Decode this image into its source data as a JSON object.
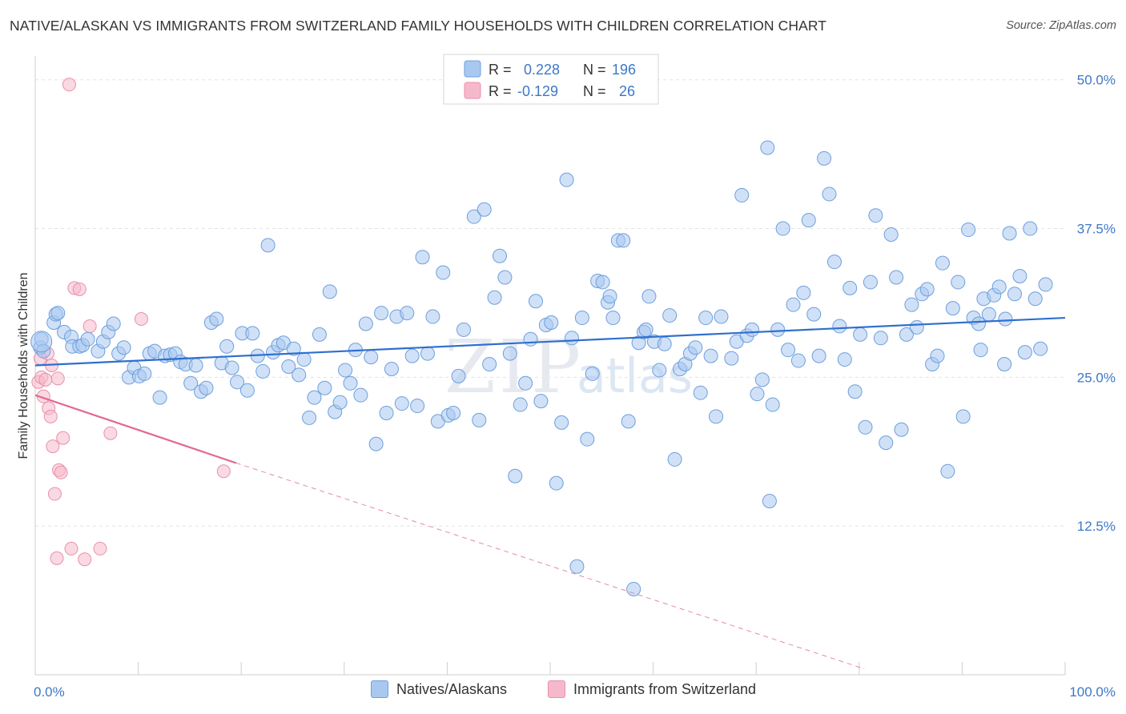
{
  "title": "NATIVE/ALASKAN VS IMMIGRANTS FROM SWITZERLAND FAMILY HOUSEHOLDS WITH CHILDREN CORRELATION CHART",
  "source": "Source: ZipAtlas.com",
  "watermark": {
    "zip": "ZIP",
    "atlas": "atlas"
  },
  "legend": {
    "r_label": "R =",
    "n_label": "N =",
    "rows": [
      {
        "r": "0.228",
        "n": "196"
      },
      {
        "r": "-0.129",
        "n": "26"
      }
    ]
  },
  "chart_data": {
    "type": "scatter",
    "xlabel": "",
    "ylabel": "Family Households with Children",
    "xlim": [
      0,
      100
    ],
    "ylim": [
      0,
      52
    ],
    "x_tick_labels": [
      "0.0%",
      "100.0%"
    ],
    "y_ticks": [
      12.5,
      25.0,
      37.5,
      50.0
    ],
    "y_tick_labels": [
      "12.5%",
      "25.0%",
      "37.5%",
      "50.0%"
    ],
    "grid": "horizontal-dashed",
    "legend_position": "top-center",
    "colors": {
      "series1_fill": "#a9c8f0",
      "series1_stroke": "#6d9fdc",
      "series1_line": "#2f6fce",
      "series2_fill": "#f6b9cb",
      "series2_stroke": "#e890ab",
      "series2_line": "#e06a93",
      "tick_label": "#3d78c8"
    },
    "series": [
      {
        "name": "Natives/Alaskans",
        "trend": {
          "x0": 0,
          "y0": 26.0,
          "x1": 100,
          "y1": 30.0
        },
        "points": [
          [
            0.5,
            27.5
          ],
          [
            0.6,
            28.2
          ],
          [
            0.8,
            27.2
          ],
          [
            1.8,
            29.6
          ],
          [
            2.0,
            30.3
          ],
          [
            2.2,
            30.4
          ],
          [
            2.8,
            28.8
          ],
          [
            3.5,
            28.4
          ],
          [
            3.6,
            27.6
          ],
          [
            4.3,
            27.6
          ],
          [
            4.6,
            27.7
          ],
          [
            5.1,
            28.2
          ],
          [
            6.1,
            27.2
          ],
          [
            6.6,
            28.0
          ],
          [
            7.1,
            28.8
          ],
          [
            7.6,
            29.5
          ],
          [
            8.1,
            27.0
          ],
          [
            8.6,
            27.5
          ],
          [
            9.1,
            25.0
          ],
          [
            9.6,
            25.8
          ],
          [
            10.1,
            25.1
          ],
          [
            10.6,
            25.3
          ],
          [
            11.1,
            27.0
          ],
          [
            11.6,
            27.2
          ],
          [
            12.1,
            23.3
          ],
          [
            12.6,
            26.8
          ],
          [
            13.1,
            26.9
          ],
          [
            13.6,
            27.0
          ],
          [
            14.1,
            26.3
          ],
          [
            14.6,
            26.1
          ],
          [
            15.1,
            24.5
          ],
          [
            15.6,
            26.0
          ],
          [
            16.1,
            23.8
          ],
          [
            16.6,
            24.1
          ],
          [
            17.1,
            29.6
          ],
          [
            17.6,
            29.9
          ],
          [
            18.1,
            26.2
          ],
          [
            18.6,
            27.6
          ],
          [
            19.1,
            25.8
          ],
          [
            19.6,
            24.6
          ],
          [
            20.1,
            28.7
          ],
          [
            20.6,
            23.9
          ],
          [
            21.1,
            28.7
          ],
          [
            21.6,
            26.8
          ],
          [
            22.1,
            25.5
          ],
          [
            22.6,
            36.1
          ],
          [
            23.1,
            27.1
          ],
          [
            23.6,
            27.7
          ],
          [
            24.1,
            27.9
          ],
          [
            24.6,
            25.9
          ],
          [
            25.1,
            27.4
          ],
          [
            25.6,
            25.2
          ],
          [
            26.1,
            26.5
          ],
          [
            26.6,
            21.6
          ],
          [
            27.1,
            23.3
          ],
          [
            27.6,
            28.6
          ],
          [
            28.1,
            24.1
          ],
          [
            28.6,
            32.2
          ],
          [
            29.1,
            22.1
          ],
          [
            29.6,
            22.9
          ],
          [
            30.1,
            25.6
          ],
          [
            30.6,
            24.5
          ],
          [
            31.1,
            27.3
          ],
          [
            31.6,
            23.5
          ],
          [
            32.1,
            29.5
          ],
          [
            32.6,
            26.7
          ],
          [
            33.1,
            19.4
          ],
          [
            33.6,
            30.4
          ],
          [
            34.1,
            22.0
          ],
          [
            34.6,
            25.7
          ],
          [
            35.1,
            30.1
          ],
          [
            35.6,
            22.8
          ],
          [
            36.1,
            30.4
          ],
          [
            36.6,
            26.8
          ],
          [
            37.1,
            22.6
          ],
          [
            37.6,
            35.1
          ],
          [
            38.1,
            27.0
          ],
          [
            38.6,
            30.1
          ],
          [
            39.1,
            21.3
          ],
          [
            39.6,
            33.8
          ],
          [
            40.1,
            21.8
          ],
          [
            40.6,
            22.0
          ],
          [
            41.1,
            25.1
          ],
          [
            41.6,
            29.0
          ],
          [
            42.6,
            38.5
          ],
          [
            43.1,
            21.4
          ],
          [
            43.6,
            39.1
          ],
          [
            44.1,
            26.1
          ],
          [
            44.6,
            31.7
          ],
          [
            45.1,
            35.2
          ],
          [
            45.6,
            33.4
          ],
          [
            46.1,
            27.0
          ],
          [
            46.6,
            16.7
          ],
          [
            47.1,
            22.7
          ],
          [
            47.6,
            24.5
          ],
          [
            48.1,
            28.2
          ],
          [
            48.6,
            31.4
          ],
          [
            49.1,
            23.0
          ],
          [
            49.6,
            29.4
          ],
          [
            50.1,
            29.6
          ],
          [
            50.6,
            16.1
          ],
          [
            51.1,
            21.2
          ],
          [
            51.6,
            41.6
          ],
          [
            52.1,
            28.3
          ],
          [
            52.6,
            9.1
          ],
          [
            53.1,
            30.0
          ],
          [
            53.6,
            19.8
          ],
          [
            54.1,
            25.3
          ],
          [
            54.6,
            33.1
          ],
          [
            55.1,
            33.0
          ],
          [
            55.6,
            31.3
          ],
          [
            55.8,
            31.8
          ],
          [
            56.1,
            30.0
          ],
          [
            56.6,
            36.5
          ],
          [
            57.1,
            36.5
          ],
          [
            57.6,
            21.3
          ],
          [
            58.1,
            7.2
          ],
          [
            58.6,
            27.9
          ],
          [
            59.1,
            28.8
          ],
          [
            59.6,
            31.8
          ],
          [
            60.1,
            28.0
          ],
          [
            60.6,
            25.6
          ],
          [
            61.1,
            27.8
          ],
          [
            61.6,
            30.2
          ],
          [
            62.1,
            18.1
          ],
          [
            62.6,
            25.7
          ],
          [
            63.1,
            26.1
          ],
          [
            63.6,
            27.0
          ],
          [
            64.1,
            27.5
          ],
          [
            64.6,
            23.7
          ],
          [
            65.1,
            30.0
          ],
          [
            65.6,
            26.8
          ],
          [
            66.1,
            21.7
          ],
          [
            66.6,
            30.1
          ],
          [
            67.6,
            26.6
          ],
          [
            68.1,
            28.0
          ],
          [
            68.6,
            40.3
          ],
          [
            69.1,
            28.5
          ],
          [
            69.6,
            29.0
          ],
          [
            70.1,
            23.6
          ],
          [
            70.6,
            24.8
          ],
          [
            71.1,
            44.3
          ],
          [
            71.3,
            14.6
          ],
          [
            71.6,
            22.7
          ],
          [
            72.1,
            29.0
          ],
          [
            72.6,
            37.5
          ],
          [
            73.1,
            27.3
          ],
          [
            73.6,
            31.1
          ],
          [
            74.1,
            26.4
          ],
          [
            74.6,
            32.1
          ],
          [
            75.1,
            38.2
          ],
          [
            75.6,
            30.3
          ],
          [
            76.1,
            26.8
          ],
          [
            76.6,
            43.4
          ],
          [
            77.1,
            40.4
          ],
          [
            77.6,
            34.7
          ],
          [
            78.1,
            29.3
          ],
          [
            78.6,
            26.5
          ],
          [
            79.1,
            32.5
          ],
          [
            79.6,
            23.8
          ],
          [
            80.1,
            28.6
          ],
          [
            80.6,
            20.8
          ],
          [
            81.1,
            33.0
          ],
          [
            81.6,
            38.6
          ],
          [
            82.1,
            28.3
          ],
          [
            82.6,
            19.5
          ],
          [
            83.1,
            37.0
          ],
          [
            83.6,
            33.4
          ],
          [
            84.1,
            20.6
          ],
          [
            84.6,
            28.6
          ],
          [
            85.1,
            31.1
          ],
          [
            85.6,
            29.2
          ],
          [
            86.1,
            32.0
          ],
          [
            86.6,
            32.4
          ],
          [
            87.1,
            26.1
          ],
          [
            87.6,
            26.8
          ],
          [
            88.1,
            34.6
          ],
          [
            88.6,
            17.1
          ],
          [
            89.1,
            30.8
          ],
          [
            89.6,
            33.0
          ],
          [
            90.1,
            21.7
          ],
          [
            90.6,
            37.4
          ],
          [
            91.1,
            30.0
          ],
          [
            91.6,
            29.5
          ],
          [
            91.8,
            27.3
          ],
          [
            92.1,
            31.6
          ],
          [
            92.6,
            30.3
          ],
          [
            93.1,
            31.9
          ],
          [
            93.6,
            32.6
          ],
          [
            94.1,
            26.1
          ],
          [
            94.6,
            37.1
          ],
          [
            95.1,
            32.0
          ],
          [
            95.6,
            33.5
          ],
          [
            96.1,
            27.1
          ],
          [
            96.6,
            37.5
          ],
          [
            97.1,
            31.6
          ],
          [
            97.6,
            27.4
          ],
          [
            98.1,
            32.8
          ],
          [
            94.2,
            29.9
          ],
          [
            59.3,
            29.0
          ]
        ]
      },
      {
        "name": "Immigrants from Switzerland",
        "trend": {
          "x0": 0,
          "y0": 23.5,
          "x1": 19.5,
          "y1": 17.8,
          "dash_to_x": 80.5,
          "dash_to_y": 0.5
        },
        "points": [
          [
            0.3,
            24.6
          ],
          [
            0.5,
            26.6
          ],
          [
            0.6,
            25.0
          ],
          [
            0.8,
            23.4
          ],
          [
            1.0,
            24.8
          ],
          [
            1.2,
            27.0
          ],
          [
            1.3,
            22.4
          ],
          [
            1.5,
            21.7
          ],
          [
            1.7,
            19.2
          ],
          [
            1.9,
            15.2
          ],
          [
            2.1,
            9.8
          ],
          [
            2.3,
            17.2
          ],
          [
            2.5,
            17.0
          ],
          [
            2.7,
            19.9
          ],
          [
            3.3,
            49.6
          ],
          [
            3.5,
            10.6
          ],
          [
            3.8,
            32.5
          ],
          [
            4.3,
            32.4
          ],
          [
            4.8,
            9.7
          ],
          [
            5.3,
            29.3
          ],
          [
            6.3,
            10.6
          ],
          [
            7.3,
            20.3
          ],
          [
            10.3,
            29.9
          ],
          [
            18.3,
            17.1
          ],
          [
            1.6,
            26.0
          ],
          [
            2.2,
            24.9
          ]
        ]
      }
    ]
  }
}
